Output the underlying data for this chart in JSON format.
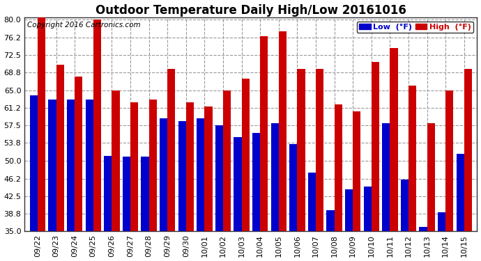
{
  "title": "Outdoor Temperature Daily High/Low 20161016",
  "copyright_text": "Copyright 2016 Cartronics.com",
  "legend_low_label": "Low  (°F)",
  "legend_high_label": "High  (°F)",
  "dates": [
    "09/22",
    "09/23",
    "09/24",
    "09/25",
    "09/26",
    "09/27",
    "09/28",
    "09/29",
    "09/30",
    "10/01",
    "10/02",
    "10/03",
    "10/04",
    "10/05",
    "10/06",
    "10/07",
    "10/08",
    "10/09",
    "10/10",
    "10/11",
    "10/12",
    "10/13",
    "10/14",
    "10/15"
  ],
  "low_values": [
    64.0,
    63.0,
    63.0,
    63.0,
    51.0,
    50.9,
    50.9,
    59.0,
    58.5,
    59.0,
    57.5,
    55.0,
    56.0,
    58.0,
    53.5,
    47.5,
    39.5,
    44.0,
    44.5,
    58.0,
    46.0,
    36.0,
    39.0,
    51.5
  ],
  "high_values": [
    80.5,
    70.5,
    68.0,
    80.0,
    65.0,
    62.5,
    63.0,
    69.5,
    62.5,
    61.5,
    65.0,
    67.5,
    76.5,
    77.5,
    69.5,
    69.5,
    62.0,
    60.5,
    71.0,
    74.0,
    66.0,
    58.0,
    65.0,
    69.5
  ],
  "low_color": "#0000cc",
  "high_color": "#cc0000",
  "background_color": "#ffffff",
  "plot_bg_color": "#ffffff",
  "grid_color": "#999999",
  "ymin": 35.0,
  "ymax": 80.0,
  "yticks": [
    35.0,
    38.8,
    42.5,
    46.2,
    50.0,
    53.8,
    57.5,
    61.2,
    65.0,
    68.8,
    72.5,
    76.2,
    80.0
  ],
  "title_fontsize": 12,
  "copyright_fontsize": 7.5,
  "tick_fontsize": 8,
  "bar_width": 0.42
}
